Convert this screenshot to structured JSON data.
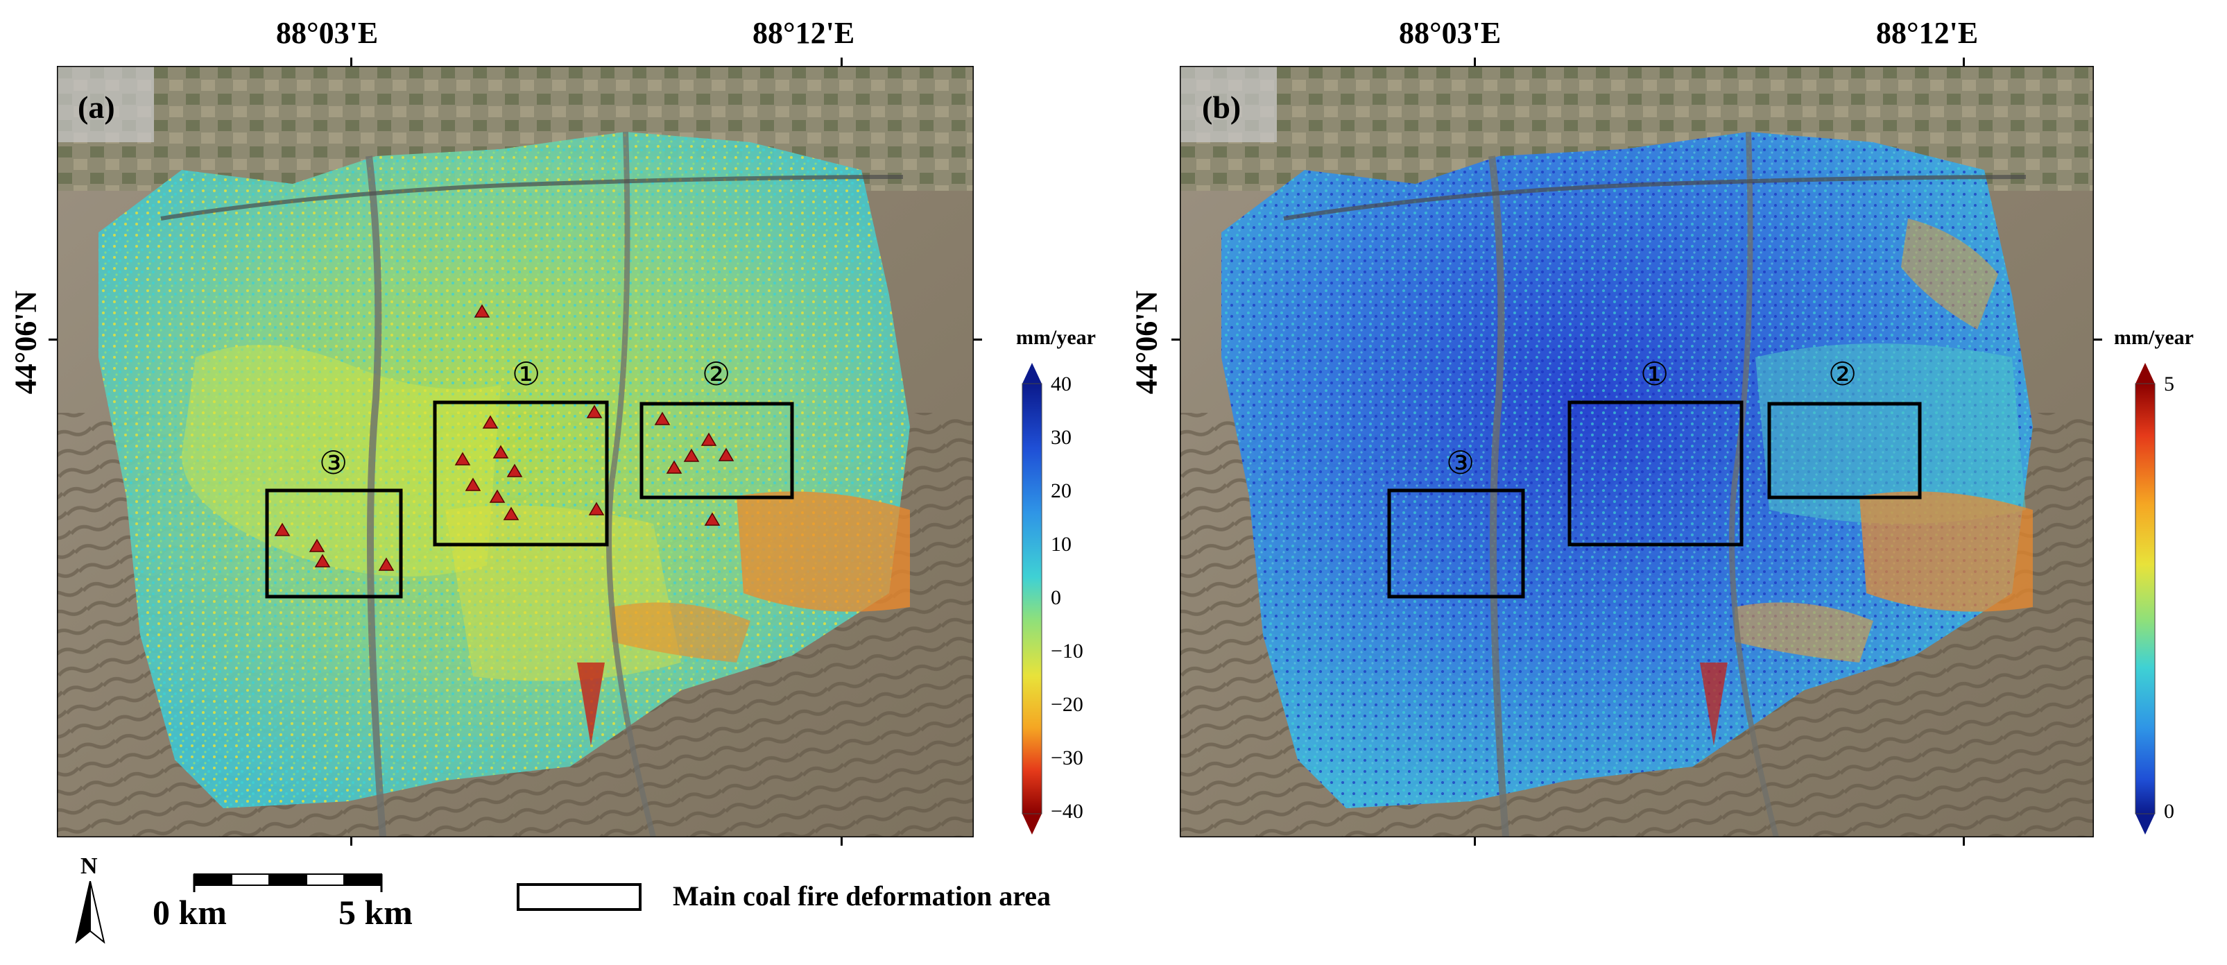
{
  "panels": [
    {
      "label": "(a)",
      "lon_labels": [
        "88°03'E",
        "88°12'E"
      ],
      "lat_label": "44°06'N",
      "unit": "mm/year",
      "colorbar": {
        "ticks": [
          "40",
          "30",
          "20",
          "10",
          "0",
          "−10",
          "−20",
          "−30",
          "−40"
        ],
        "colors": [
          "#0b1a8c",
          "#1f4fd6",
          "#2f95e6",
          "#3fd1d4",
          "#8fe07a",
          "#e8e23a",
          "#f5a623",
          "#e53a1a",
          "#8b0000"
        ]
      },
      "zones": [
        "①",
        "②",
        "③"
      ],
      "markers_shown": true
    },
    {
      "label": "(b)",
      "lon_labels": [
        "88°03'E",
        "88°12'E"
      ],
      "lat_label": "44°06'N",
      "unit": "mm/year",
      "colorbar": {
        "ticks": [
          "5",
          "0"
        ],
        "colors": [
          "#8b0000",
          "#e53a1a",
          "#f5a623",
          "#e8e23a",
          "#8fe07a",
          "#3fd1d4",
          "#2f95e6",
          "#1f4fd6",
          "#0b1a8c"
        ]
      },
      "zones": [
        "①",
        "②",
        "③"
      ],
      "markers_shown": false
    }
  ],
  "north_arrow": "N",
  "scale_bar": {
    "start": "0 km",
    "end": "5 km"
  },
  "legend": {
    "label": "Main coal fire deformation area"
  }
}
